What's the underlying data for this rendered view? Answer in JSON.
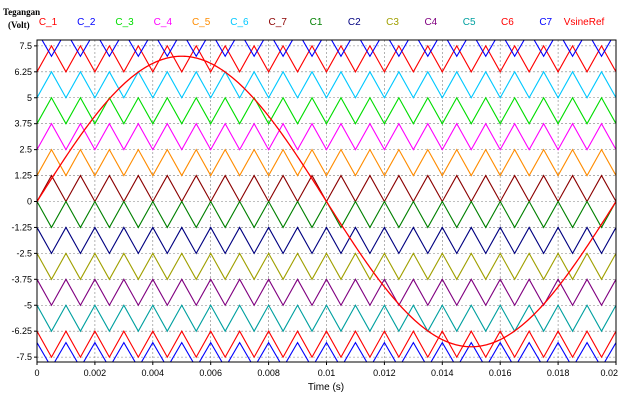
{
  "chart_data": {
    "type": "line",
    "title": "",
    "ylabel": [
      "Tegangan",
      "(Volt)"
    ],
    "xlabel": "Time (s)",
    "xlim": [
      0,
      0.02
    ],
    "ylim": [
      -8,
      8.2
    ],
    "xticks": [
      "0",
      "0.002",
      "0.004",
      "0.006",
      "0.008",
      "0.01",
      "0.012",
      "0.014",
      "0.016",
      "0.018",
      "0.02"
    ],
    "yticks": [
      {
        "value": 7.5,
        "label": "7.5"
      },
      {
        "value": 6.25,
        "label": "6.25"
      },
      {
        "value": 5,
        "label": "5"
      },
      {
        "value": 3.75,
        "label": "3.75"
      },
      {
        "value": 2.5,
        "label": "2.5"
      },
      {
        "value": 1.25,
        "label": "1.25"
      },
      {
        "value": 0,
        "label": "0"
      },
      {
        "value": -1.25,
        "label": "-1.25"
      },
      {
        "value": -2.5,
        "label": "-2.5"
      },
      {
        "value": -3.75,
        "label": "-3.75"
      },
      {
        "value": -5,
        "label": "-5"
      },
      {
        "value": -6.25,
        "label": "-6.25"
      },
      {
        "value": -7.5,
        "label": "-7.5"
      }
    ],
    "grid": true,
    "legend_position": "top",
    "carrier_frequency_hz": 1000,
    "carrier_amplitude_v": 1.25,
    "series": [
      {
        "name": "C_1",
        "color": "#ff0000",
        "kind": "triangle",
        "min": 6.25,
        "max": 7.5,
        "phase": 0.5
      },
      {
        "name": "C_2",
        "color": "#0000ff",
        "kind": "triangle",
        "min": 7.0,
        "max": 8.2,
        "phase": 0
      },
      {
        "name": "C_3",
        "color": "#00dd00",
        "kind": "triangle",
        "min": 3.75,
        "max": 5,
        "phase": 0.5
      },
      {
        "name": "C_4",
        "color": "#ff00ff",
        "kind": "triangle",
        "min": 2.5,
        "max": 3.75,
        "phase": 0.5
      },
      {
        "name": "C_5",
        "color": "#ff8c00",
        "kind": "triangle",
        "min": 1.25,
        "max": 2.5,
        "phase": 0.5
      },
      {
        "name": "C_6",
        "color": "#00c8ff",
        "kind": "triangle",
        "min": 5,
        "max": 6.25,
        "phase": 0.5
      },
      {
        "name": "C_7",
        "color": "#8b0000",
        "kind": "triangle",
        "min": 0,
        "max": 1.25,
        "phase": 0.5
      },
      {
        "name": "C1",
        "color": "#008000",
        "kind": "triangle",
        "min": -1.25,
        "max": 0,
        "phase": 0
      },
      {
        "name": "C2",
        "color": "#000080",
        "kind": "triangle",
        "min": -2.5,
        "max": -1.25,
        "phase": 0
      },
      {
        "name": "C3",
        "color": "#a0a000",
        "kind": "triangle",
        "min": -3.75,
        "max": -2.5,
        "phase": 0
      },
      {
        "name": "C4",
        "color": "#800080",
        "kind": "triangle",
        "min": -5,
        "max": -3.75,
        "phase": 0
      },
      {
        "name": "C5",
        "color": "#00a0a0",
        "kind": "triangle",
        "min": -6.25,
        "max": -5,
        "phase": 0
      },
      {
        "name": "C6",
        "color": "#ff0000",
        "kind": "triangle",
        "min": -7.5,
        "max": -6.25,
        "phase": 0
      },
      {
        "name": "C7",
        "color": "#0000ff",
        "kind": "triangle",
        "min": -8.0,
        "max": -6.8,
        "phase": 0
      },
      {
        "name": "VsineRef",
        "color": "#ff0000",
        "kind": "sine",
        "amplitude": 7.0,
        "frequency_hz": 50
      }
    ]
  }
}
